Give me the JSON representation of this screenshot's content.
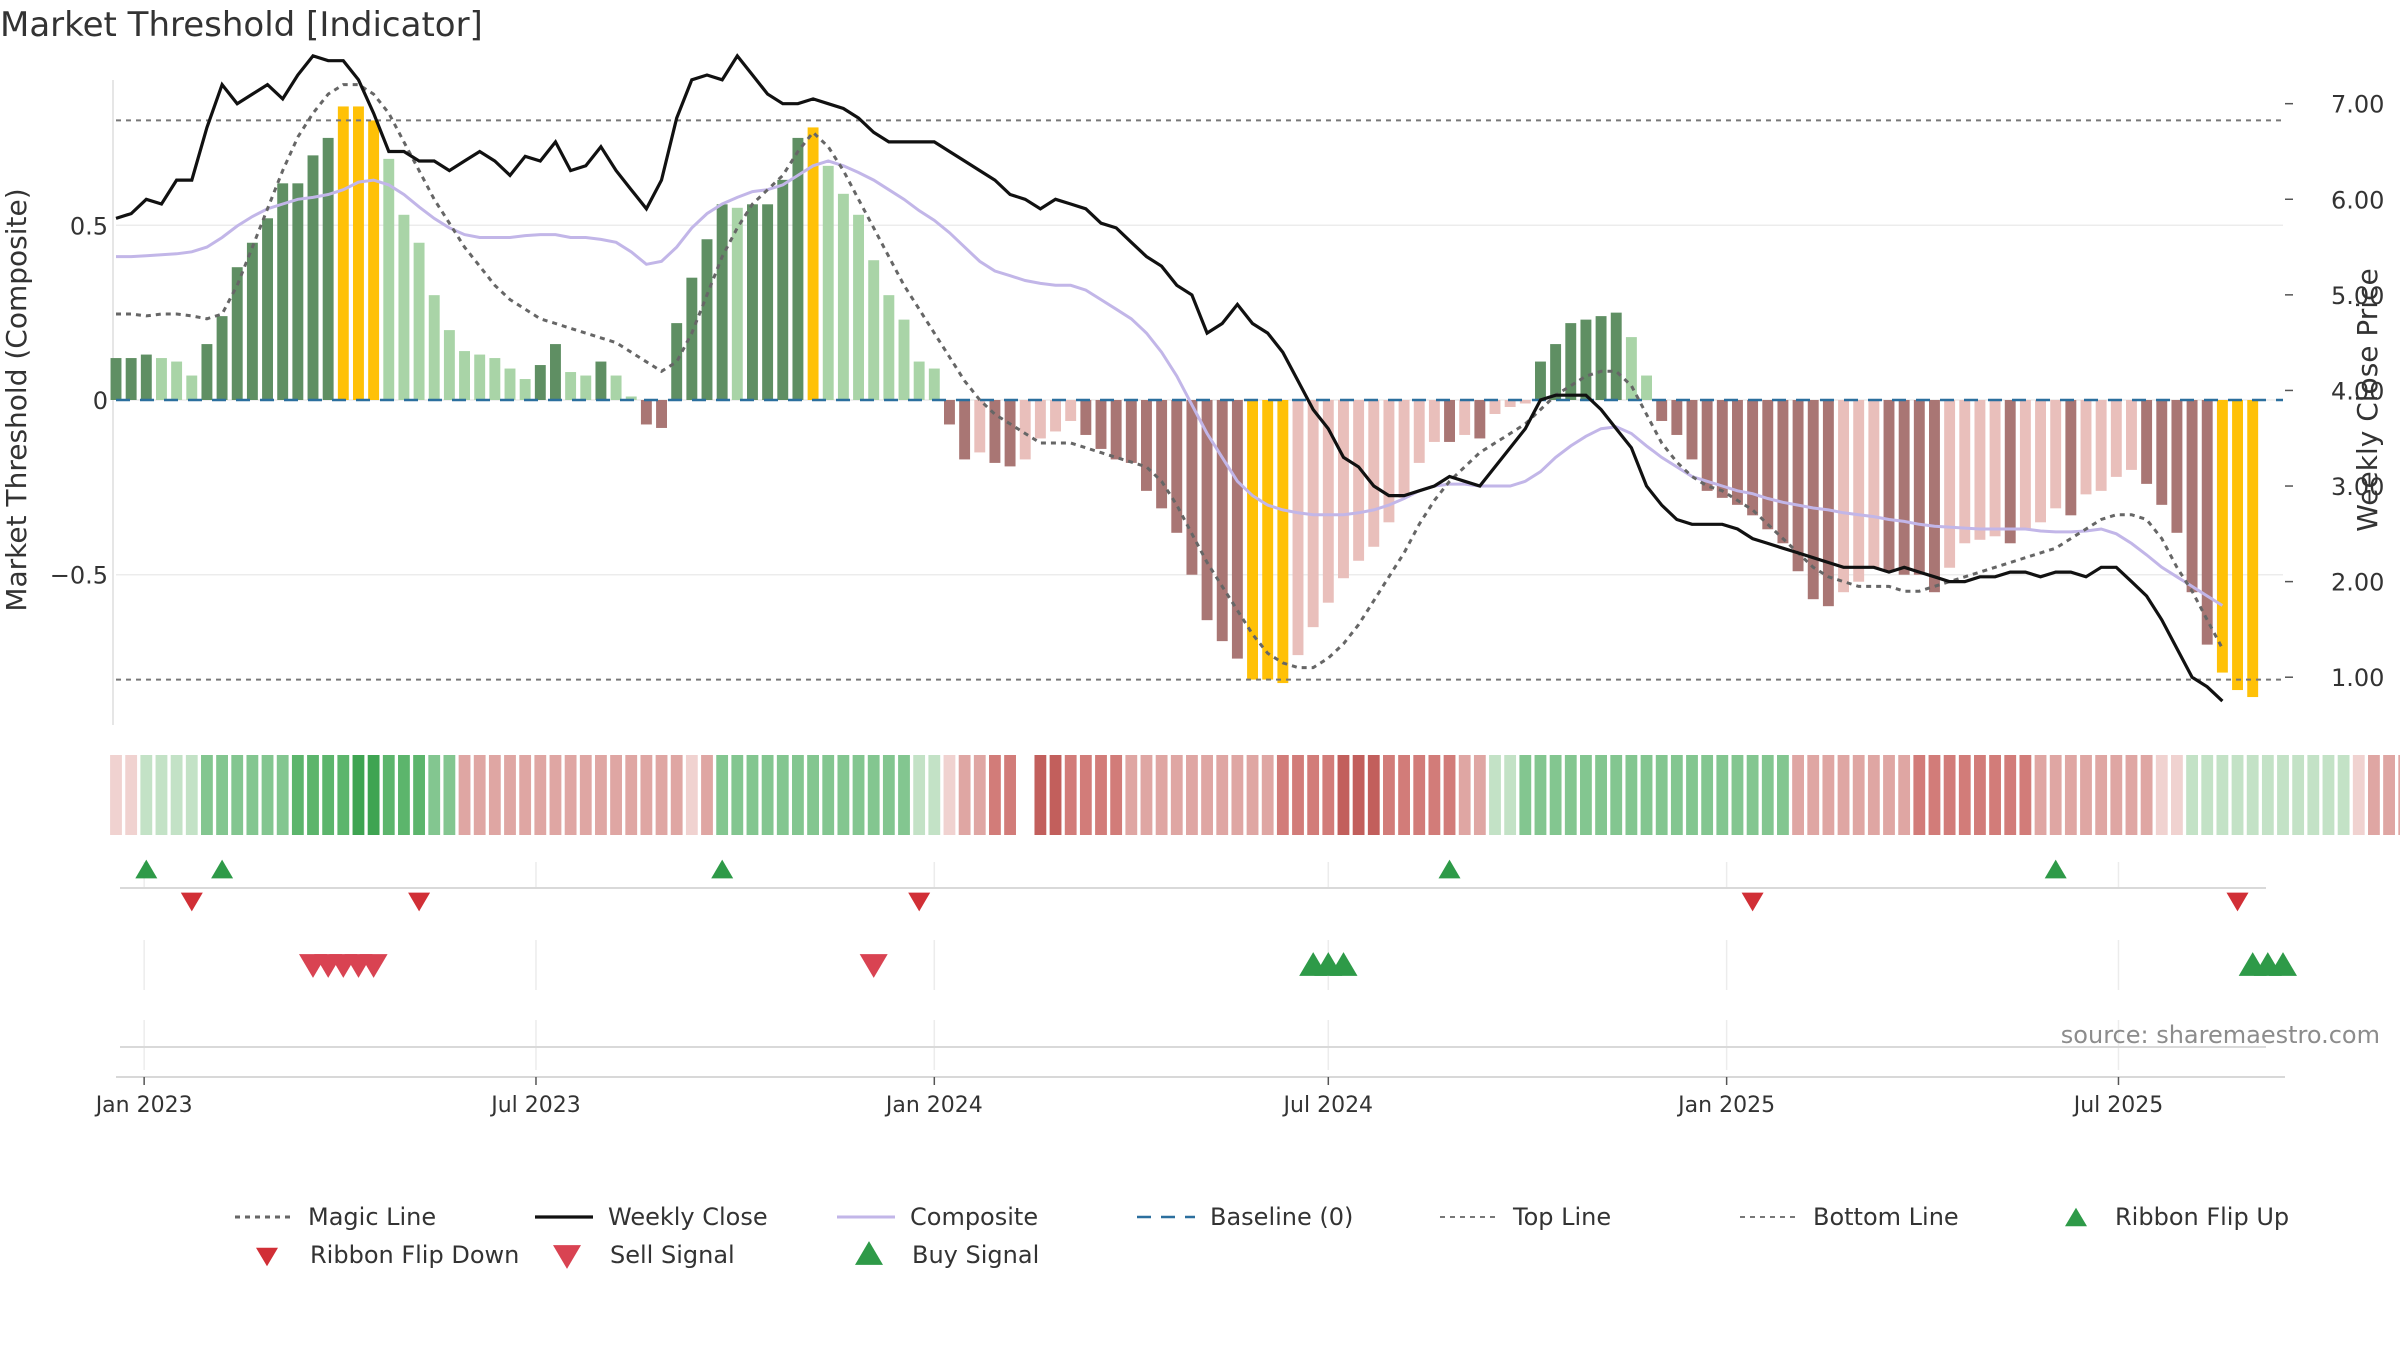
{
  "colors": {
    "up_dark": "#5f8f63",
    "up_light": "#a9d4a7",
    "down_dark": "#a97674",
    "down_light": "#e9bfbb",
    "extreme": "#ffc107",
    "magic": "#666666",
    "close": "#111111",
    "composite": "#c2b6e8",
    "baseline": "#2b6f9e",
    "limits": "#777777",
    "buy": "#2e9a48",
    "sell": "#d94352",
    "flip_up": "#2e9a48",
    "flip_down": "#d12f36",
    "source": "#8c8c8c"
  },
  "chart_data": {
    "type": "bar",
    "title": "Market Threshold [Indicator]",
    "ylabel_left": "Market Threshold (Composite)",
    "ylabel_right": "Weekly Close Price",
    "left_ylim": [
      -0.93,
      0.93
    ],
    "left_ticks": [
      {
        "v": 0.5,
        "label": "0.5"
      },
      {
        "v": 0,
        "label": "0"
      },
      {
        "v": -0.5,
        "label": "−0.5"
      }
    ],
    "right_ylim": [
      0.5,
      7.3
    ],
    "right_ticks": [
      {
        "v": 7,
        "label": "7.00"
      },
      {
        "v": 6,
        "label": "6.00"
      },
      {
        "v": 5,
        "label": "5.00"
      },
      {
        "v": 4,
        "label": "4.00"
      },
      {
        "v": 3,
        "label": "3.00"
      },
      {
        "v": 2,
        "label": "2.00"
      },
      {
        "v": 1,
        "label": "1.00"
      }
    ],
    "top_line": 0.8,
    "bottom_line": -0.8,
    "x_start": "2022-12-19",
    "x_end": "2025-09-15",
    "x_ticks": [
      {
        "date": "2023-01-01",
        "label": "Jan 2023"
      },
      {
        "date": "2023-07-01",
        "label": "Jul 2023"
      },
      {
        "date": "2024-01-01",
        "label": "Jan 2024"
      },
      {
        "date": "2024-07-01",
        "label": "Jul 2024"
      },
      {
        "date": "2025-01-01",
        "label": "Jan 2025"
      },
      {
        "date": "2025-07-01",
        "label": "Jul 2025"
      }
    ],
    "composite_bars": [
      0.12,
      0.12,
      0.13,
      0.12,
      0.11,
      0.07,
      0.16,
      0.24,
      0.38,
      0.45,
      0.52,
      0.62,
      0.62,
      0.7,
      0.75,
      0.84,
      0.84,
      0.8,
      0.69,
      0.53,
      0.45,
      0.3,
      0.2,
      0.14,
      0.13,
      0.12,
      0.09,
      0.06,
      0.1,
      0.16,
      0.08,
      0.07,
      0.11,
      0.07,
      0.01,
      -0.07,
      -0.08,
      0.22,
      0.35,
      0.46,
      0.56,
      0.55,
      0.56,
      0.56,
      0.63,
      0.75,
      0.78,
      0.67,
      0.59,
      0.53,
      0.4,
      0.3,
      0.23,
      0.11,
      0.09,
      -0.07,
      -0.17,
      -0.15,
      -0.18,
      -0.19,
      -0.17,
      -0.11,
      -0.09,
      -0.06,
      -0.1,
      -0.14,
      -0.17,
      -0.18,
      -0.26,
      -0.31,
      -0.38,
      -0.5,
      -0.63,
      -0.69,
      -0.74,
      -0.8,
      -0.8,
      -0.81,
      -0.73,
      -0.65,
      -0.58,
      -0.51,
      -0.46,
      -0.42,
      -0.35,
      -0.28,
      -0.18,
      -0.12,
      -0.12,
      -0.1,
      -0.11,
      -0.04,
      -0.02,
      -0.01,
      0.11,
      0.16,
      0.22,
      0.23,
      0.24,
      0.25,
      0.18,
      0.07,
      -0.06,
      -0.1,
      -0.17,
      -0.26,
      -0.28,
      -0.3,
      -0.33,
      -0.37,
      -0.41,
      -0.49,
      -0.57,
      -0.59,
      -0.55,
      -0.52,
      -0.48,
      -0.49,
      -0.5,
      -0.5,
      -0.55,
      -0.48,
      -0.41,
      -0.4,
      -0.39,
      -0.41,
      -0.37,
      -0.35,
      -0.31,
      -0.33,
      -0.27,
      -0.26,
      -0.22,
      -0.2,
      -0.24,
      -0.3,
      -0.38,
      -0.55,
      -0.7,
      -0.78,
      -0.83,
      -0.85
    ],
    "weekly_close": [
      5.8,
      5.85,
      6.0,
      5.95,
      6.2,
      6.2,
      6.75,
      7.2,
      7.0,
      7.1,
      7.2,
      7.05,
      7.3,
      7.5,
      7.45,
      7.45,
      7.25,
      6.9,
      6.5,
      6.5,
      6.4,
      6.4,
      6.3,
      6.4,
      6.5,
      6.4,
      6.25,
      6.45,
      6.4,
      6.6,
      6.3,
      6.35,
      6.55,
      6.3,
      6.1,
      5.9,
      6.2,
      6.85,
      7.25,
      7.3,
      7.25,
      7.5,
      7.3,
      7.1,
      7.0,
      7.0,
      7.05,
      7.0,
      6.95,
      6.85,
      6.7,
      6.6,
      6.6,
      6.6,
      6.6,
      6.5,
      6.4,
      6.3,
      6.2,
      6.05,
      6.0,
      5.9,
      6.0,
      5.95,
      5.9,
      5.75,
      5.7,
      5.55,
      5.4,
      5.3,
      5.1,
      5.0,
      4.6,
      4.7,
      4.9,
      4.7,
      4.6,
      4.4,
      4.1,
      3.8,
      3.6,
      3.3,
      3.2,
      3.0,
      2.9,
      2.9,
      2.95,
      3.0,
      3.1,
      3.05,
      3.0,
      3.2,
      3.4,
      3.6,
      3.9,
      3.95,
      3.95,
      3.95,
      3.8,
      3.6,
      3.4,
      3.0,
      2.8,
      2.65,
      2.6,
      2.6,
      2.6,
      2.55,
      2.45,
      2.4,
      2.35,
      2.3,
      2.25,
      2.2,
      2.15,
      2.15,
      2.15,
      2.1,
      2.15,
      2.1,
      2.05,
      2.0,
      2.0,
      2.05,
      2.05,
      2.1,
      2.1,
      2.05,
      2.1,
      2.1,
      2.05,
      2.15,
      2.15,
      2.0,
      1.85,
      1.6,
      1.3,
      1.0,
      0.9,
      0.75
    ],
    "magic_line": [
      4.8,
      4.8,
      4.78,
      4.8,
      4.8,
      4.78,
      4.75,
      4.8,
      5.1,
      5.5,
      5.9,
      6.3,
      6.65,
      6.9,
      7.1,
      7.2,
      7.2,
      7.1,
      6.9,
      6.6,
      6.3,
      6.0,
      5.75,
      5.5,
      5.3,
      5.1,
      4.95,
      4.85,
      4.75,
      4.7,
      4.65,
      4.6,
      4.55,
      4.5,
      4.4,
      4.3,
      4.2,
      4.3,
      4.6,
      5.0,
      5.4,
      5.7,
      5.95,
      6.1,
      6.25,
      6.5,
      6.7,
      6.55,
      6.3,
      6.0,
      5.7,
      5.4,
      5.1,
      4.85,
      4.6,
      4.35,
      4.1,
      3.9,
      3.75,
      3.65,
      3.55,
      3.45,
      3.45,
      3.45,
      3.4,
      3.35,
      3.3,
      3.25,
      3.2,
      3.05,
      2.8,
      2.5,
      2.2,
      1.95,
      1.7,
      1.45,
      1.25,
      1.15,
      1.1,
      1.1,
      1.2,
      1.35,
      1.55,
      1.8,
      2.05,
      2.3,
      2.6,
      2.85,
      3.05,
      3.2,
      3.35,
      3.45,
      3.55,
      3.65,
      3.8,
      3.95,
      4.05,
      4.15,
      4.2,
      4.2,
      4.05,
      3.75,
      3.45,
      3.25,
      3.1,
      3.0,
      2.95,
      2.85,
      2.75,
      2.6,
      2.45,
      2.3,
      2.15,
      2.05,
      2.0,
      1.95,
      1.95,
      1.95,
      1.9,
      1.9,
      1.95,
      2.0,
      2.05,
      2.1,
      2.15,
      2.2,
      2.25,
      2.3,
      2.35,
      2.45,
      2.55,
      2.65,
      2.7,
      2.7,
      2.65,
      2.45,
      2.15,
      1.9,
      1.6,
      1.3
    ],
    "composite_line": [
      5.4,
      5.4,
      5.41,
      5.42,
      5.43,
      5.45,
      5.5,
      5.6,
      5.72,
      5.82,
      5.9,
      5.95,
      6.0,
      6.02,
      6.05,
      6.1,
      6.18,
      6.2,
      6.15,
      6.05,
      5.92,
      5.8,
      5.7,
      5.63,
      5.6,
      5.6,
      5.6,
      5.62,
      5.63,
      5.63,
      5.6,
      5.6,
      5.58,
      5.55,
      5.45,
      5.32,
      5.35,
      5.5,
      5.7,
      5.85,
      5.95,
      6.02,
      6.08,
      6.1,
      6.15,
      6.25,
      6.35,
      6.4,
      6.35,
      6.28,
      6.2,
      6.1,
      6.0,
      5.88,
      5.78,
      5.65,
      5.5,
      5.35,
      5.25,
      5.2,
      5.15,
      5.12,
      5.1,
      5.1,
      5.05,
      4.95,
      4.85,
      4.75,
      4.6,
      4.4,
      4.15,
      3.85,
      3.55,
      3.3,
      3.05,
      2.9,
      2.8,
      2.75,
      2.72,
      2.7,
      2.7,
      2.7,
      2.72,
      2.75,
      2.8,
      2.87,
      2.95,
      3.0,
      3.02,
      3.02,
      3.0,
      3.0,
      3.0,
      3.05,
      3.15,
      3.3,
      3.42,
      3.52,
      3.6,
      3.62,
      3.55,
      3.42,
      3.3,
      3.2,
      3.1,
      3.05,
      3.0,
      2.95,
      2.92,
      2.87,
      2.83,
      2.8,
      2.77,
      2.75,
      2.72,
      2.7,
      2.68,
      2.65,
      2.63,
      2.6,
      2.58,
      2.57,
      2.56,
      2.55,
      2.55,
      2.55,
      2.55,
      2.53,
      2.52,
      2.52,
      2.53,
      2.55,
      2.5,
      2.4,
      2.28,
      2.15,
      2.05,
      1.95,
      1.85,
      1.75
    ],
    "ribbon_states": [
      -1,
      -1,
      1,
      1,
      1,
      1,
      2,
      2,
      2,
      2,
      2,
      2,
      3,
      3,
      3,
      3,
      4,
      4,
      3,
      3,
      3,
      2,
      2,
      -2,
      -2,
      -2,
      -2,
      -2,
      -2,
      -2,
      -2,
      -2,
      -2,
      -2,
      -2,
      -2,
      -2,
      -2,
      -1,
      -2,
      2,
      2,
      2,
      2,
      2,
      2,
      2,
      2,
      2,
      2,
      2,
      2,
      2,
      1,
      1,
      -1,
      -2,
      -2,
      -3,
      -3,
      0,
      -4,
      -4,
      -3,
      -3,
      -3,
      -3,
      -2,
      -2,
      -2,
      -2,
      -2,
      -2,
      -2,
      -2,
      -2,
      -2,
      -3,
      -3,
      -3,
      -3,
      -4,
      -4,
      -4,
      -3,
      -3,
      -3,
      -3,
      -3,
      -2,
      -2,
      1,
      1,
      2,
      2,
      2,
      2,
      2,
      2,
      2,
      2,
      2,
      2,
      2,
      2,
      2,
      2,
      2,
      2,
      2,
      2,
      -2,
      -2,
      -2,
      -2,
      -2,
      -2,
      -2,
      -2,
      -3,
      -3,
      -3,
      -3,
      -3,
      -3,
      -3,
      -3,
      -2,
      -2,
      -2,
      -2,
      -2,
      -2,
      -2,
      -2,
      -1,
      -1,
      1,
      1,
      1,
      1,
      1,
      1,
      1,
      1,
      1,
      1,
      1,
      -1,
      -2,
      -2,
      -2,
      -2,
      -2,
      -3,
      -3
    ],
    "ribbon_flip_up": [
      "2023-01-02",
      "2023-02-06",
      "2023-09-25",
      "2024-08-26",
      "2025-06-02"
    ],
    "ribbon_flip_down": [
      "2023-01-23",
      "2023-05-08",
      "2023-12-25",
      "2025-01-13",
      "2025-08-25"
    ],
    "sell_signals": [
      "2023-03-20",
      "2023-03-27",
      "2023-04-03",
      "2023-04-10",
      "2023-04-17",
      "2023-12-04"
    ],
    "buy_signals": [
      "2024-06-24",
      "2024-07-01",
      "2024-07-08",
      "2025-09-01",
      "2025-09-08",
      "2025-09-15"
    ],
    "source": "source: sharemaestro.com"
  },
  "legend": [
    {
      "label": "Magic Line",
      "key": "magic"
    },
    {
      "label": "Weekly Close",
      "key": "close"
    },
    {
      "label": "Composite",
      "key": "composite"
    },
    {
      "label": "Baseline (0)",
      "key": "baseline"
    },
    {
      "label": "Top Line",
      "key": "top"
    },
    {
      "label": "Bottom Line",
      "key": "bottom"
    },
    {
      "label": "Ribbon Flip Up",
      "key": "flip_up"
    },
    {
      "label": "Ribbon Flip Down",
      "key": "flip_down"
    },
    {
      "label": "Sell Signal",
      "key": "sell"
    },
    {
      "label": "Buy Signal",
      "key": "buy"
    }
  ]
}
